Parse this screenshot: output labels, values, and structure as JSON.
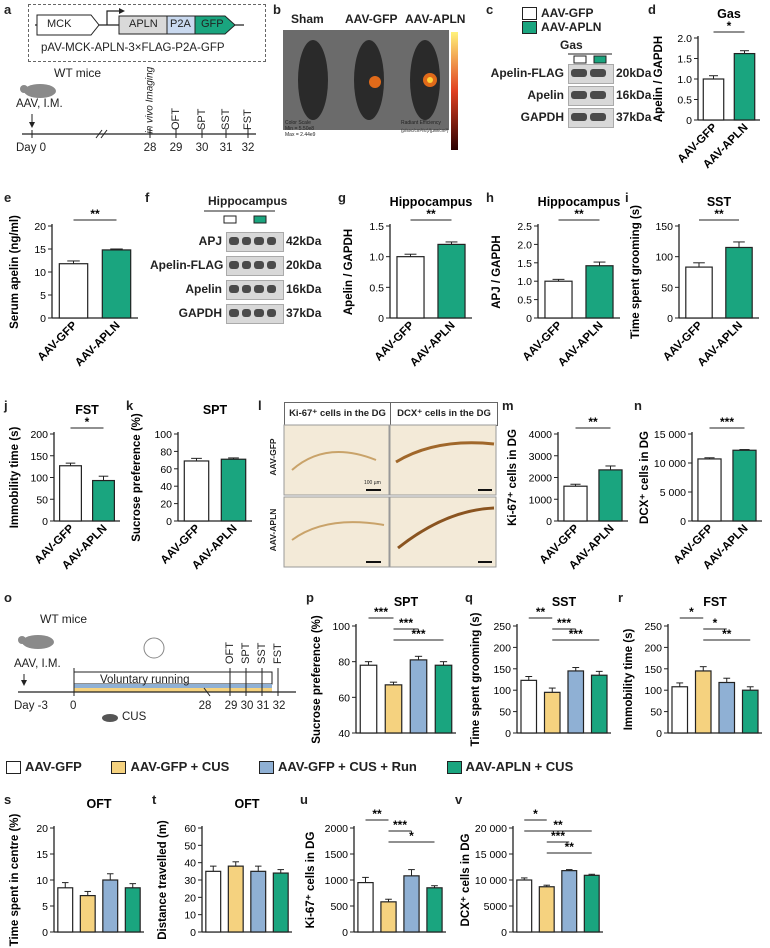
{
  "colors": {
    "gfp": "#ffffff",
    "cus": "#f5d27f",
    "run": "#8fb0d4",
    "apln": "#1aa57f",
    "text": "#222222"
  },
  "panel_letters": [
    "a",
    "b",
    "c",
    "d",
    "e",
    "f",
    "g",
    "h",
    "i",
    "j",
    "k",
    "l",
    "m",
    "n",
    "o",
    "p",
    "q",
    "r",
    "s",
    "t",
    "u",
    "v"
  ],
  "panel_a": {
    "construct": {
      "parts": [
        "MCK",
        "APLN",
        "P2A",
        "GFP"
      ],
      "caption": "pAV-MCK-APLN-3×FLAG-P2A-GFP"
    },
    "mice_label": "WT mice",
    "injection": "AAV, I.M.",
    "day_label": "Day 0",
    "timeline": [
      {
        "day": "28",
        "name": "in vivo Imaging"
      },
      {
        "day": "29",
        "name": "OFT"
      },
      {
        "day": "30",
        "name": "SPT"
      },
      {
        "day": "31",
        "name": "SST"
      },
      {
        "day": "32",
        "name": "FST"
      }
    ]
  },
  "panel_b": {
    "labels": [
      "Sham",
      "AAV-GFP",
      "AAV-APLN"
    ],
    "scale_left": "Color Scale\nMin = 5.50e8\nMax = 2.44e9",
    "scale_right": "Radiant Efficiency",
    "scale_units": "(p/sec/cm²/sr)/(µW/cm²)"
  },
  "panel_c": {
    "legend": [
      "AAV-GFP",
      "AAV-APLN"
    ],
    "tissue": "Gas",
    "rows": [
      {
        "name": "Apelin-FLAG",
        "kda": "20kDa"
      },
      {
        "name": "Apelin",
        "kda": "16kDa"
      },
      {
        "name": "GAPDH",
        "kda": "37kDa"
      }
    ]
  },
  "panel_f": {
    "tissue": "Hippocampus",
    "rows": [
      {
        "name": "APJ",
        "kda": "42kDa"
      },
      {
        "name": "Apelin-FLAG",
        "kda": "20kDa"
      },
      {
        "name": "Apelin",
        "kda": "16kDa"
      },
      {
        "name": "GAPDH",
        "kda": "37kDa"
      }
    ]
  },
  "panel_l": {
    "col_titles": [
      "Ki-67⁺ cells in the DG",
      "DCX⁺ cells in the DG"
    ],
    "row_labels": [
      "AAV-GFP",
      "AAV-APLN"
    ],
    "scalebar": "100 µm"
  },
  "panel_o": {
    "mice_label": "WT mice",
    "injection": "AAV, I.M.",
    "day_label": "Day -3",
    "running": "Voluntary running",
    "cus": "CUS",
    "start": "0",
    "days": [
      "28",
      "29",
      "30",
      "31",
      "32"
    ],
    "tests": [
      "OFT",
      "SPT",
      "SST",
      "FST"
    ]
  },
  "legend": [
    "AAV-GFP",
    "AAV-GFP + CUS",
    "AAV-GFP + CUS + Run",
    "AAV-APLN + CUS"
  ],
  "chart_data": [
    {
      "id": "d",
      "type": "bar",
      "title": "Gas",
      "ylabel": "Apelin / GAPDH",
      "categories": [
        "AAV-GFP",
        "AAV-APLN"
      ],
      "values": [
        1.0,
        1.62
      ],
      "sem": [
        0.08,
        0.07
      ],
      "ylim": [
        0,
        2.0
      ],
      "yticks": [
        "0",
        "0.5",
        "1.0",
        "1.5",
        "2.0"
      ],
      "sig": [
        {
          "a": 0,
          "b": 1,
          "label": "*"
        }
      ]
    },
    {
      "id": "e",
      "type": "bar",
      "title": "",
      "ylabel": "Serum apelin (ng/ml)",
      "categories": [
        "AAV-GFP",
        "AAV-APLN"
      ],
      "values": [
        11.8,
        14.8
      ],
      "sem": [
        0.6,
        0.2
      ],
      "ylim": [
        0,
        20
      ],
      "yticks": [
        "0",
        "5",
        "10",
        "15",
        "20"
      ],
      "sig": [
        {
          "a": 0,
          "b": 1,
          "label": "**"
        }
      ]
    },
    {
      "id": "g",
      "type": "bar",
      "title": "Hippocampus",
      "ylabel": "Apelin / GAPDH",
      "categories": [
        "AAV-GFP",
        "AAV-APLN"
      ],
      "values": [
        1.0,
        1.2
      ],
      "sem": [
        0.04,
        0.04
      ],
      "ylim": [
        0,
        1.5
      ],
      "yticks": [
        "0",
        "0.5",
        "1.0",
        "1.5"
      ],
      "sig": [
        {
          "a": 0,
          "b": 1,
          "label": "**"
        }
      ]
    },
    {
      "id": "h",
      "type": "bar",
      "title": "Hippocampus",
      "ylabel": "APJ / GAPDH",
      "categories": [
        "AAV-GFP",
        "AAV-APLN"
      ],
      "values": [
        1.0,
        1.42
      ],
      "sem": [
        0.05,
        0.1
      ],
      "ylim": [
        0,
        2.5
      ],
      "yticks": [
        "0",
        "0.5",
        "1.0",
        "1.5",
        "2.0",
        "2.5"
      ],
      "sig": [
        {
          "a": 0,
          "b": 1,
          "label": "**"
        }
      ]
    },
    {
      "id": "i",
      "type": "bar",
      "title": "SST",
      "ylabel": "Time spent grooming (s)",
      "categories": [
        "AAV-GFP",
        "AAV-APLN"
      ],
      "values": [
        83,
        115
      ],
      "sem": [
        7,
        9
      ],
      "ylim": [
        0,
        150
      ],
      "yticks": [
        "0",
        "50",
        "100",
        "150"
      ],
      "sig": [
        {
          "a": 0,
          "b": 1,
          "label": "**"
        }
      ]
    },
    {
      "id": "j",
      "type": "bar",
      "title": "FST",
      "ylabel": "Immobility time (s)",
      "categories": [
        "AAV-GFP",
        "AAV-APLN"
      ],
      "values": [
        127,
        93
      ],
      "sem": [
        6,
        10
      ],
      "ylim": [
        0,
        200
      ],
      "yticks": [
        "0",
        "50",
        "100",
        "150",
        "200"
      ],
      "sig": [
        {
          "a": 0,
          "b": 1,
          "label": "*"
        }
      ]
    },
    {
      "id": "k",
      "type": "bar",
      "title": "SPT",
      "ylabel": "Sucrose preference (%)",
      "categories": [
        "AAV-GFP",
        "AAV-APLN"
      ],
      "values": [
        69,
        71
      ],
      "sem": [
        3,
        1.5
      ],
      "ylim": [
        0,
        100
      ],
      "yticks": [
        "0",
        "20",
        "40",
        "60",
        "80",
        "100"
      ],
      "sig": []
    },
    {
      "id": "m",
      "type": "bar",
      "title": "",
      "ylabel": "Ki-67⁺ cells in DG",
      "categories": [
        "AAV-GFP",
        "AAV-APLN"
      ],
      "values": [
        1600,
        2350
      ],
      "sem": [
        90,
        180
      ],
      "ylim": [
        0,
        4000
      ],
      "yticks": [
        "0",
        "1000",
        "2000",
        "3000",
        "4000"
      ],
      "sig": [
        {
          "a": 0,
          "b": 1,
          "label": "**"
        }
      ]
    },
    {
      "id": "n",
      "type": "bar",
      "title": "",
      "ylabel": "DCX⁺ cells in DG",
      "categories": [
        "AAV-GFP",
        "AAV-APLN"
      ],
      "values": [
        10700,
        12200
      ],
      "sem": [
        200,
        120
      ],
      "ylim": [
        0,
        15000
      ],
      "yticks": [
        "0",
        "5 000",
        "10 000",
        "15 000"
      ],
      "sig": [
        {
          "a": 0,
          "b": 1,
          "label": "***"
        }
      ]
    },
    {
      "id": "p",
      "type": "bar",
      "title": "SPT",
      "ylabel": "Sucrose preference (%)",
      "categories": [
        "AAV-GFP",
        "AAV-GFP + CUS",
        "AAV-GFP + CUS + Run",
        "AAV-APLN + CUS"
      ],
      "values": [
        78,
        67,
        81,
        78
      ],
      "sem": [
        2,
        1.5,
        2,
        2
      ],
      "ylim": [
        40,
        100
      ],
      "yticks": [
        "40",
        "60",
        "80",
        "100"
      ],
      "sig": [
        {
          "a": 0,
          "b": 1,
          "label": "***"
        },
        {
          "a": 1,
          "b": 2,
          "label": "***"
        },
        {
          "a": 1,
          "b": 3,
          "label": "***"
        }
      ]
    },
    {
      "id": "q",
      "type": "bar",
      "title": "SST",
      "ylabel": "Time spent grooming (s)",
      "categories": [
        "AAV-GFP",
        "AAV-GFP + CUS",
        "AAV-GFP + CUS + Run",
        "AAV-APLN + CUS"
      ],
      "values": [
        123,
        95,
        145,
        135
      ],
      "sem": [
        9,
        10,
        8,
        9
      ],
      "ylim": [
        0,
        250
      ],
      "yticks": [
        "0",
        "50",
        "100",
        "150",
        "200",
        "250"
      ],
      "sig": [
        {
          "a": 0,
          "b": 1,
          "label": "**"
        },
        {
          "a": 1,
          "b": 2,
          "label": "***"
        },
        {
          "a": 1,
          "b": 3,
          "label": "***"
        }
      ]
    },
    {
      "id": "r",
      "type": "bar",
      "title": "FST",
      "ylabel": "Immobility time (s)",
      "categories": [
        "AAV-GFP",
        "AAV-GFP + CUS",
        "AAV-GFP + CUS + Run",
        "AAV-APLN + CUS"
      ],
      "values": [
        108,
        145,
        118,
        100
      ],
      "sem": [
        9,
        10,
        10,
        8
      ],
      "ylim": [
        0,
        250
      ],
      "yticks": [
        "0",
        "50",
        "100",
        "150",
        "200",
        "250"
      ],
      "sig": [
        {
          "a": 0,
          "b": 1,
          "label": "*"
        },
        {
          "a": 1,
          "b": 2,
          "label": "*"
        },
        {
          "a": 1,
          "b": 3,
          "label": "**"
        }
      ]
    },
    {
      "id": "s",
      "type": "bar",
      "title": "OFT",
      "ylabel": "Time spent in centre (%)",
      "categories": [
        "AAV-GFP",
        "AAV-GFP + CUS",
        "AAV-GFP + CUS + Run",
        "AAV-APLN + CUS"
      ],
      "values": [
        8.5,
        7,
        10,
        8.5
      ],
      "sem": [
        1,
        0.8,
        1.2,
        0.8
      ],
      "ylim": [
        0,
        20
      ],
      "yticks": [
        "0",
        "5",
        "10",
        "15",
        "20"
      ],
      "sig": []
    },
    {
      "id": "t",
      "type": "bar",
      "title": "OFT",
      "ylabel": "Distance travelled (m)",
      "categories": [
        "AAV-GFP",
        "AAV-GFP + CUS",
        "AAV-GFP + CUS + Run",
        "AAV-APLN + CUS"
      ],
      "values": [
        35,
        38,
        35,
        34
      ],
      "sem": [
        3,
        2.5,
        3,
        2
      ],
      "ylim": [
        0,
        60
      ],
      "yticks": [
        "0",
        "10",
        "20",
        "30",
        "40",
        "50",
        "60"
      ],
      "sig": []
    },
    {
      "id": "u",
      "type": "bar",
      "title": "",
      "ylabel": "Ki-67⁺ cells in DG",
      "categories": [
        "AAV-GFP",
        "AAV-GFP + CUS",
        "AAV-GFP + CUS + Run",
        "AAV-APLN + CUS"
      ],
      "values": [
        950,
        580,
        1080,
        850
      ],
      "sem": [
        100,
        50,
        120,
        40
      ],
      "ylim": [
        0,
        2000
      ],
      "yticks": [
        "0",
        "500",
        "1000",
        "1500",
        "2000"
      ],
      "sig": [
        {
          "a": 0,
          "b": 1,
          "label": "**"
        },
        {
          "a": 1,
          "b": 2,
          "label": "***"
        },
        {
          "a": 1,
          "b": 3,
          "label": "*"
        }
      ]
    },
    {
      "id": "v",
      "type": "bar",
      "title": "",
      "ylabel": "DCX⁺ cells in DG",
      "categories": [
        "AAV-GFP",
        "AAV-GFP + CUS",
        "AAV-GFP + CUS + Run",
        "AAV-APLN + CUS"
      ],
      "values": [
        10000,
        8700,
        11800,
        10900
      ],
      "sem": [
        400,
        300,
        200,
        200
      ],
      "ylim": [
        0,
        20000
      ],
      "yticks": [
        "0",
        "5000",
        "10 000",
        "15 000",
        "20 000"
      ],
      "sig": [
        {
          "a": 0,
          "b": 1,
          "label": "*"
        },
        {
          "a": 0,
          "b": 3,
          "label": "**"
        },
        {
          "a": 1,
          "b": 2,
          "label": "***"
        },
        {
          "a": 1,
          "b": 3,
          "label": "**"
        }
      ]
    }
  ]
}
